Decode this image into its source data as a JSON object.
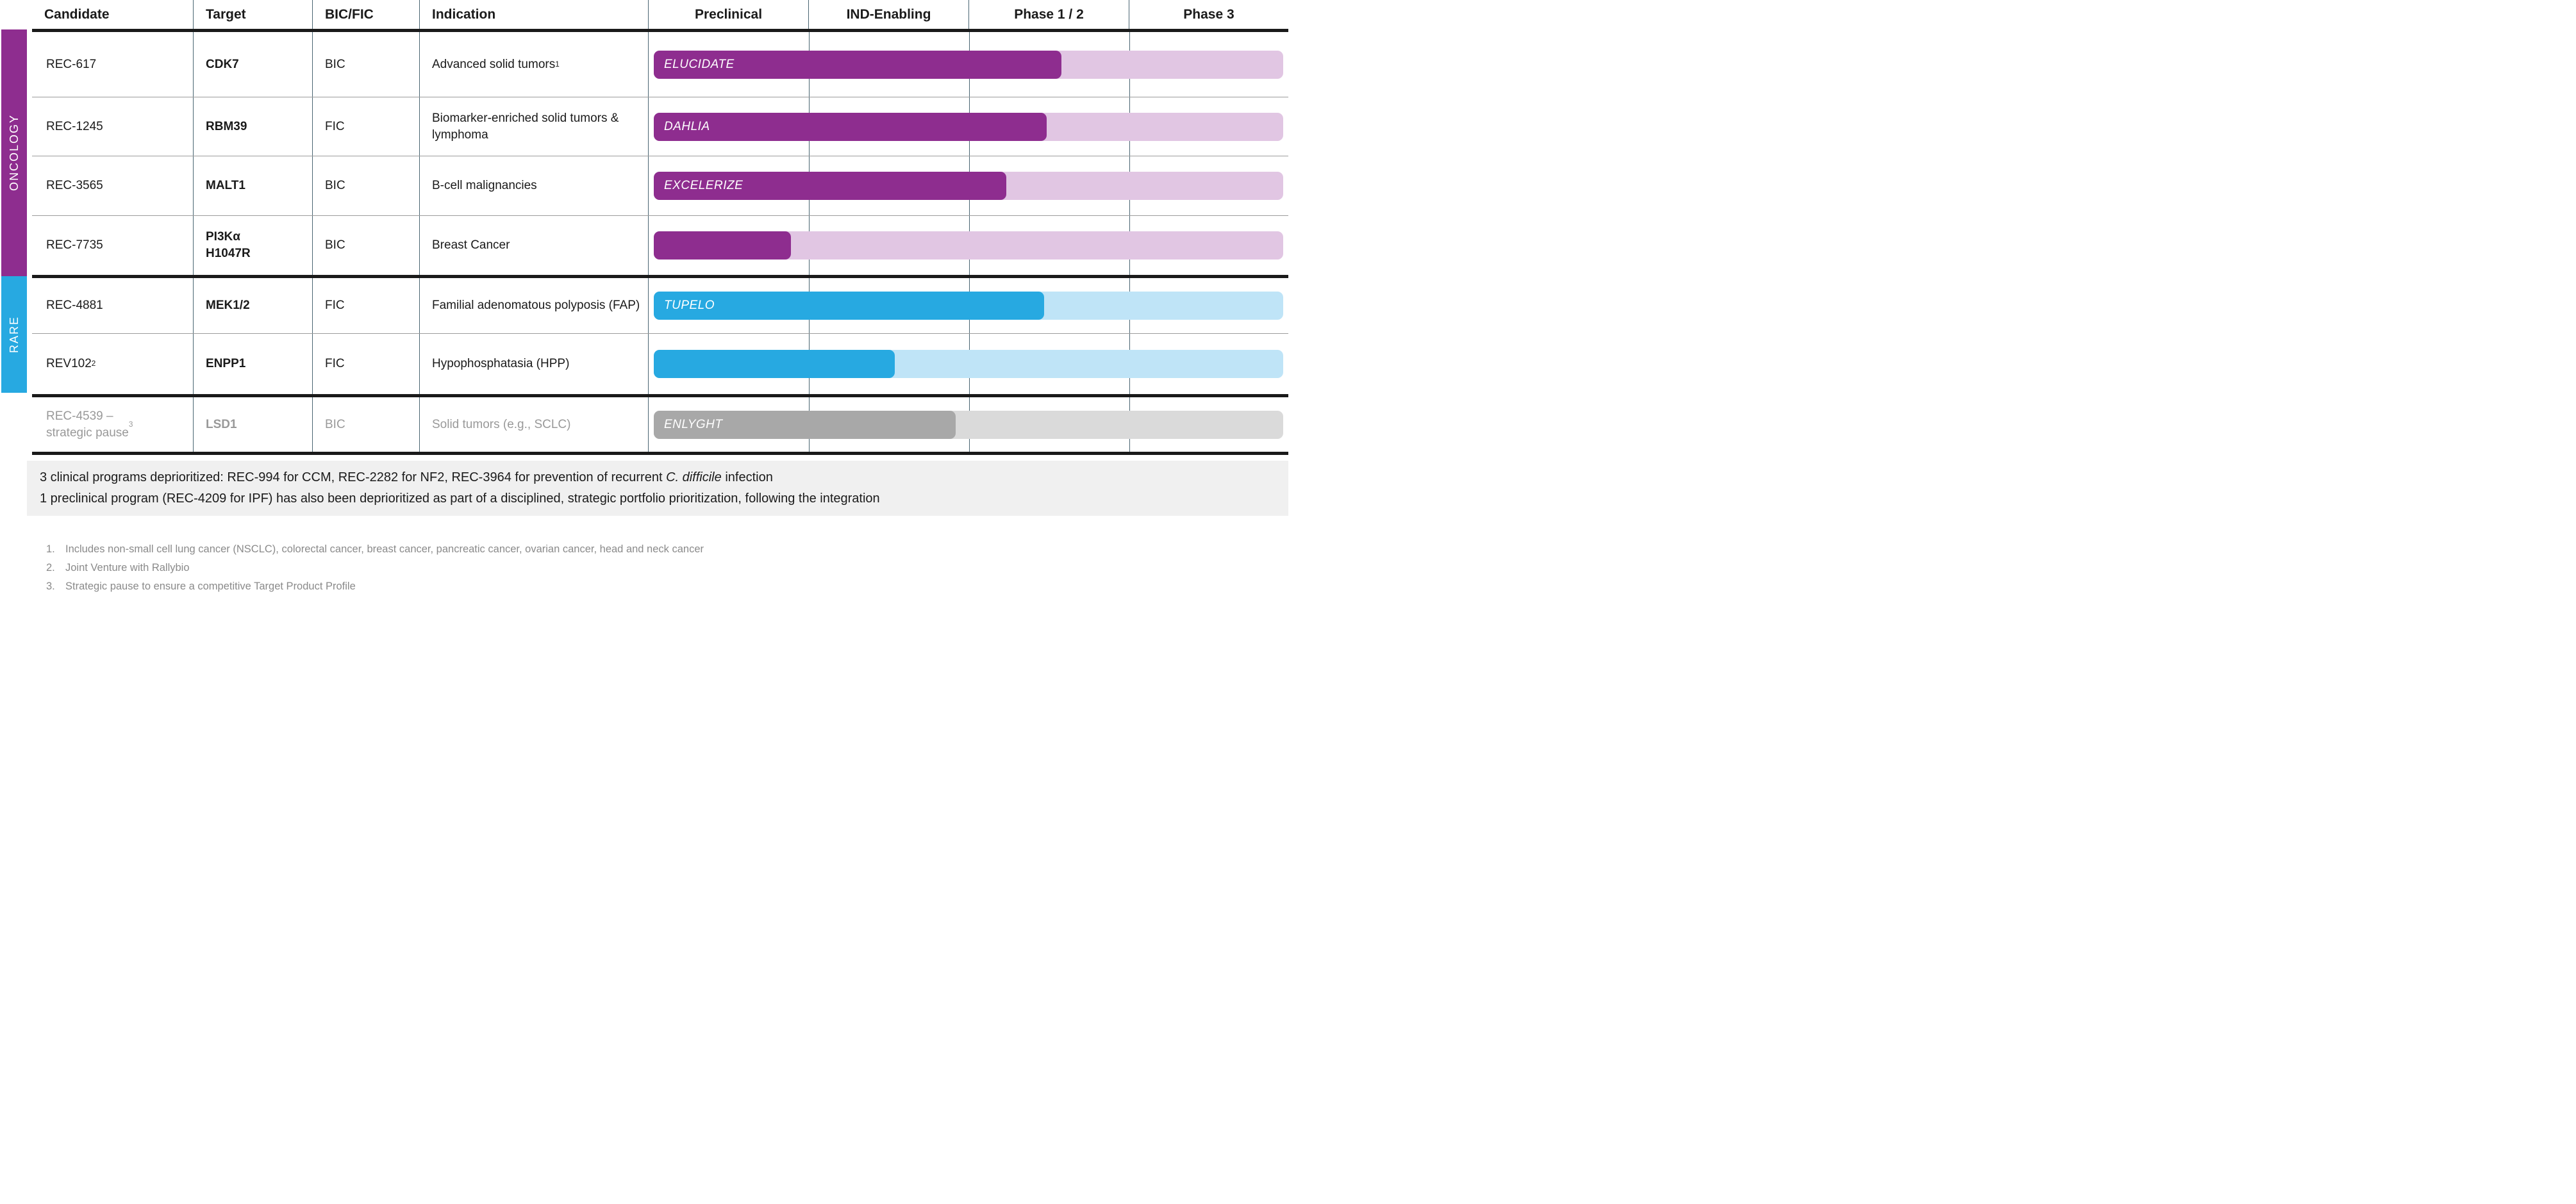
{
  "colors": {
    "oncology_dark": "#8E2D8F",
    "oncology_light": "#E1C6E3",
    "rare_dark": "#27A9E1",
    "rare_light": "#BFE4F7",
    "paused_dark": "#A8A8A8",
    "paused_light": "#DADADA",
    "grid_line": "#4A6572",
    "thick_line": "#1A1A1A",
    "thin_sep": "#9B9B9B",
    "box_bg": "#F0F0F0",
    "muted_text": "#999999",
    "footnote_text": "#8A8A8A"
  },
  "table": {
    "headers": [
      "Candidate",
      "Target",
      "BIC/FIC",
      "Indication",
      "Preclinical",
      "IND-Enabling",
      "Phase 1 / 2",
      "Phase 3"
    ],
    "sections": [
      {
        "label": "ONCOLOGY"
      },
      {
        "label": "RARE"
      }
    ],
    "rows": [
      {
        "candidate": "REC-617",
        "candidate_sup": "",
        "target": "CDK7",
        "bic_fic": "BIC",
        "indication": "Advanced solid tumors",
        "indication_sup": "1",
        "trial_name": "ELUCIDATE",
        "progress": "64.8%",
        "category": "ONCOLOGY"
      },
      {
        "candidate": "REC-1245",
        "candidate_sup": "",
        "target": "RBM39",
        "bic_fic": "FIC",
        "indication": "Biomarker-enriched solid tumors & lymphoma",
        "indication_sup": "",
        "trial_name": "DAHLIA",
        "progress": "62.4%",
        "category": "ONCOLOGY"
      },
      {
        "candidate": "REC-3565",
        "candidate_sup": "",
        "target": "MALT1",
        "bic_fic": "BIC",
        "indication": "B-cell malignancies",
        "indication_sup": "",
        "trial_name": "EXCELERIZE",
        "progress": "56%",
        "category": "ONCOLOGY"
      },
      {
        "candidate": "REC-7735",
        "candidate_sup": "",
        "target": "PI3Kα\nH1047R",
        "bic_fic": "BIC",
        "indication": "Breast Cancer",
        "indication_sup": "",
        "trial_name": "",
        "progress": "21.8%",
        "category": "ONCOLOGY"
      },
      {
        "candidate": "REC-4881",
        "candidate_sup": "",
        "target": "MEK1/2",
        "bic_fic": "FIC",
        "indication": "Familial adenomatous polyposis (FAP)",
        "indication_sup": "",
        "trial_name": "TUPELO",
        "progress": "62%",
        "category": "RARE"
      },
      {
        "candidate": "REV102",
        "candidate_sup": "2",
        "target": "ENPP1",
        "bic_fic": "FIC",
        "indication": "Hypophosphatasia (HPP)",
        "indication_sup": "",
        "trial_name": "",
        "progress": "38.3%",
        "category": "RARE"
      },
      {
        "candidate": "REC-4539 –\nstrategic pause",
        "candidate_sup": "3",
        "target": "LSD1",
        "bic_fic": "BIC",
        "indication": "Solid tumors (e.g., SCLC)",
        "indication_sup": "",
        "trial_name": "ENLYGHT",
        "progress": "48%",
        "category": "PAUSED"
      }
    ]
  },
  "deprioritized": {
    "line1_pre": "3 clinical programs deprioritized: REC-994 for CCM, REC-2282 for NF2, REC-3964 for prevention of recurrent ",
    "line1_italic": "C. difficile",
    "line1_post": " infection",
    "line2": "1 preclinical program (REC-4209 for IPF) has also been deprioritized as part of a disciplined, strategic portfolio prioritization, following the integration"
  },
  "footnotes": [
    {
      "num": "1.",
      "text": "Includes non-small cell lung cancer (NSCLC), colorectal cancer, breast cancer, pancreatic cancer, ovarian cancer, head and neck cancer"
    },
    {
      "num": "2.",
      "text": "Joint Venture with Rallybio"
    },
    {
      "num": "3.",
      "text": "Strategic pause to ensure a competitive Target Product Profile"
    }
  ]
}
